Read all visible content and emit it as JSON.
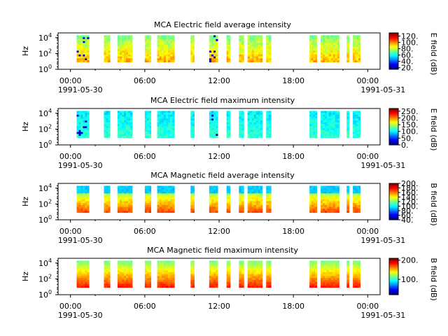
{
  "chart_data": [
    {
      "type": "heatmap",
      "title": "MCA  Electric field average intensity",
      "ylabel": "Hz",
      "yscale": "log",
      "y_ticks": [
        "10^0",
        "10^2",
        "10^4"
      ],
      "ylim": [
        1,
        40000
      ],
      "x_ticks": [
        "00:00",
        "06:00",
        "12:00",
        "18:00",
        "00:00"
      ],
      "x_date_start": "1991-05-30",
      "x_date_end": "1991-05-31",
      "xlim_hours": [
        -1,
        25
      ],
      "colorbar": {
        "label": "E field (dB)",
        "ticks": [
          "20.",
          "40.",
          "60.",
          "80.",
          "100.",
          "120."
        ],
        "range": [
          15,
          130
        ]
      },
      "segments_hours": [
        [
          0.5,
          1.5
        ],
        [
          2.7,
          3.2
        ],
        [
          3.8,
          5.0
        ],
        [
          6.0,
          6.5
        ],
        [
          7.0,
          8.4
        ],
        [
          9.7,
          10.0
        ],
        [
          11.2,
          11.9
        ],
        [
          12.6,
          12.9
        ],
        [
          13.6,
          14.0
        ],
        [
          14.3,
          15.5
        ],
        [
          15.8,
          16.2
        ],
        [
          19.3,
          19.9
        ],
        [
          20.2,
          21.7
        ],
        [
          22.3,
          22.5
        ],
        [
          22.8,
          23.4
        ]
      ],
      "freq_range_hz": [
        8,
        20000
      ]
    },
    {
      "type": "heatmap",
      "title": "MCA  Electric field maximum intensity",
      "ylabel": "Hz",
      "yscale": "log",
      "y_ticks": [
        "10^0",
        "10^2",
        "10^4"
      ],
      "ylim": [
        1,
        40000
      ],
      "x_ticks": [
        "00:00",
        "06:00",
        "12:00",
        "18:00",
        "00:00"
      ],
      "x_date_start": "1991-05-30",
      "x_date_end": "1991-05-31",
      "xlim_hours": [
        -1,
        25
      ],
      "colorbar": {
        "label": "E field (dB)",
        "ticks": [
          "0.",
          "50.",
          "100.",
          "150.",
          "200.",
          "250."
        ],
        "range": [
          0,
          270
        ]
      },
      "segments_hours": [
        [
          0.5,
          1.5
        ],
        [
          2.7,
          3.2
        ],
        [
          3.8,
          5.0
        ],
        [
          6.0,
          6.5
        ],
        [
          7.0,
          8.4
        ],
        [
          9.7,
          10.0
        ],
        [
          11.2,
          11.9
        ],
        [
          12.6,
          12.9
        ],
        [
          13.6,
          14.0
        ],
        [
          14.3,
          15.5
        ],
        [
          15.8,
          16.2
        ],
        [
          19.3,
          19.9
        ],
        [
          20.2,
          21.7
        ],
        [
          22.3,
          22.5
        ],
        [
          22.8,
          23.4
        ]
      ],
      "freq_range_hz": [
        8,
        20000
      ]
    },
    {
      "type": "heatmap",
      "title": "MCA  Magnetic field average intensity",
      "ylabel": "Hz",
      "yscale": "log",
      "y_ticks": [
        "10^0",
        "10^2",
        "10^4"
      ],
      "ylim": [
        1,
        40000
      ],
      "x_ticks": [
        "00:00",
        "06:00",
        "12:00",
        "18:00",
        "00:00"
      ],
      "x_date_start": "1991-05-30",
      "x_date_end": "1991-05-31",
      "xlim_hours": [
        -1,
        25
      ],
      "colorbar": {
        "label": "B field (dB)",
        "ticks": [
          "40.",
          "60.",
          "80.",
          "100.",
          "120.",
          "140.",
          "160.",
          "180.",
          "200."
        ],
        "range": [
          40,
          200
        ]
      },
      "segments_hours": [
        [
          0.5,
          1.5
        ],
        [
          2.7,
          3.2
        ],
        [
          3.8,
          5.0
        ],
        [
          6.0,
          6.5
        ],
        [
          7.0,
          8.4
        ],
        [
          9.7,
          10.0
        ],
        [
          11.2,
          11.9
        ],
        [
          12.6,
          12.9
        ],
        [
          13.6,
          14.0
        ],
        [
          14.3,
          15.5
        ],
        [
          15.8,
          16.2
        ],
        [
          19.3,
          19.9
        ],
        [
          20.2,
          21.7
        ],
        [
          22.3,
          22.5
        ],
        [
          22.8,
          23.4
        ]
      ],
      "freq_range_hz": [
        8,
        20000
      ]
    },
    {
      "type": "heatmap",
      "title": "MCA  Magnetic field maximum intensity",
      "ylabel": "Hz",
      "yscale": "log",
      "y_ticks": [
        "10^0",
        "10^2",
        "10^4"
      ],
      "ylim": [
        1,
        40000
      ],
      "x_ticks": [
        "00:00",
        "06:00",
        "12:00",
        "18:00",
        "00:00"
      ],
      "x_date_start": "1991-05-30",
      "x_date_end": "1991-05-31",
      "xlim_hours": [
        -1,
        25
      ],
      "colorbar": {
        "label": "B field (dB)",
        "ticks": [
          "100.",
          "200."
        ],
        "range": [
          20,
          210
        ]
      },
      "segments_hours": [
        [
          0.5,
          1.5
        ],
        [
          2.7,
          3.2
        ],
        [
          3.8,
          5.0
        ],
        [
          6.0,
          6.5
        ],
        [
          7.0,
          8.4
        ],
        [
          9.7,
          10.0
        ],
        [
          11.2,
          11.9
        ],
        [
          12.6,
          12.9
        ],
        [
          13.6,
          14.0
        ],
        [
          14.3,
          15.5
        ],
        [
          15.8,
          16.2
        ],
        [
          19.3,
          19.9
        ],
        [
          20.2,
          21.7
        ],
        [
          22.3,
          22.5
        ],
        [
          22.8,
          23.4
        ]
      ],
      "freq_range_hz": [
        8,
        20000
      ]
    }
  ]
}
